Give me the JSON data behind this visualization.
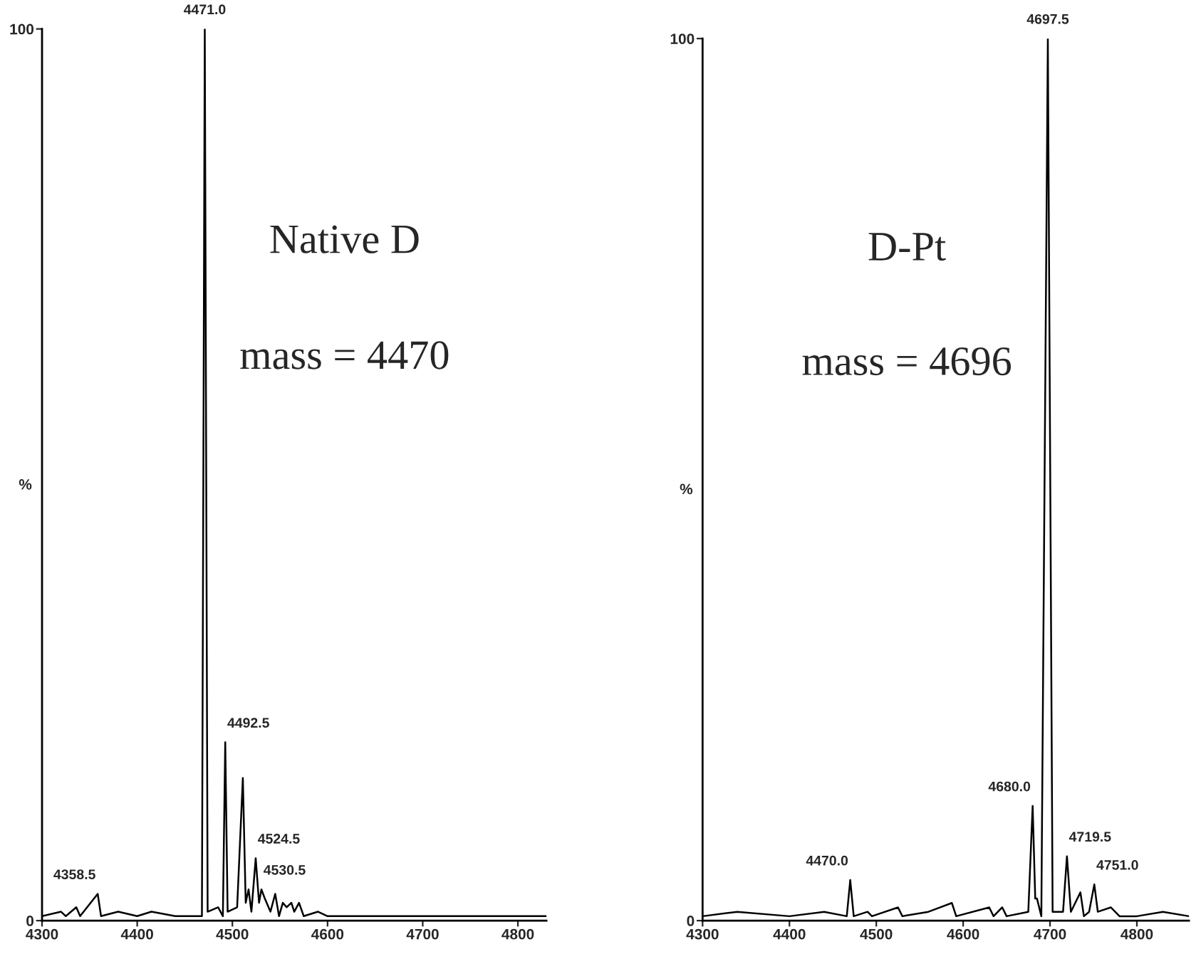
{
  "chart_data": [
    {
      "type": "line",
      "ylabel": "%",
      "xlim": [
        4300,
        4830
      ],
      "xticks": [
        4300,
        4400,
        4500,
        4600,
        4700,
        4800
      ],
      "ylim": [
        0,
        100
      ],
      "yticks": [
        0,
        100
      ],
      "grid": false,
      "legend": false,
      "marker": "none",
      "line_style": "solid",
      "annotations": [
        "Native D",
        "mass = 4470",
        {
          "text": "4471.0",
          "x": 4471,
          "y": 100
        },
        {
          "text": "4492.5",
          "x": 4492.5,
          "y": 20
        },
        {
          "text": "4524.5",
          "x": 4524.5,
          "y": 7
        },
        {
          "text": "4530.5",
          "x": 4530.5,
          "y": 3.5
        },
        {
          "text": "4358.5",
          "x": 4358.5,
          "y": 3
        }
      ],
      "series": [
        {
          "color": "#000000",
          "x": [
            4300,
            4320,
            4325,
            4336,
            4340,
            4358.5,
            4362,
            4380,
            4400,
            4415,
            4440,
            4468,
            4471,
            4474,
            4485,
            4490,
            4492.5,
            4495,
            4505,
            4511,
            4514,
            4517,
            4520,
            4524.5,
            4528,
            4530.5,
            4534,
            4540,
            4545,
            4549,
            4553,
            4557,
            4562,
            4565,
            4570,
            4575,
            4590,
            4600,
            4650,
            4700,
            4750,
            4800,
            4830
          ],
          "values": [
            0.5,
            1,
            0.5,
            1.5,
            0.5,
            3,
            0.5,
            1,
            0.5,
            1,
            0.5,
            0.5,
            100,
            1,
            1.5,
            0.5,
            20,
            1,
            1.5,
            16,
            2,
            3.5,
            1,
            7,
            2,
            3.5,
            2.5,
            1,
            3,
            0.5,
            2,
            1.5,
            2,
            1,
            2,
            0.5,
            1,
            0.5,
            0.5,
            0.5,
            0.5,
            0.5,
            0.5
          ]
        }
      ]
    },
    {
      "type": "line",
      "ylabel": "%",
      "xlim": [
        4300,
        4860
      ],
      "xticks": [
        4300,
        4400,
        4500,
        4600,
        4700,
        4800
      ],
      "ylim": [
        0,
        100
      ],
      "yticks": [
        0,
        100
      ],
      "grid": false,
      "legend": false,
      "marker": "none",
      "line_style": "solid",
      "annotations": [
        "D-Pt",
        "mass = 4696",
        {
          "text": "4697.5",
          "x": 4697.5,
          "y": 100
        },
        {
          "text": "4680.0",
          "x": 4680,
          "y": 13
        },
        {
          "text": "4719.5",
          "x": 4719.5,
          "y": 7.3
        },
        {
          "text": "4751.0",
          "x": 4751,
          "y": 4.1
        },
        {
          "text": "4470.0",
          "x": 4470,
          "y": 4.6
        }
      ],
      "series": [
        {
          "color": "#000000",
          "x": [
            4300,
            4340,
            4400,
            4440,
            4466,
            4470,
            4474,
            4490,
            4495,
            4525,
            4530,
            4560,
            4587,
            4592,
            4630,
            4635,
            4645,
            4650,
            4675,
            4680,
            4683,
            4685,
            4690,
            4697.5,
            4703,
            4715,
            4719.5,
            4724,
            4735,
            4739,
            4745,
            4751,
            4755,
            4770,
            4780,
            4800,
            4830,
            4860
          ],
          "values": [
            0.5,
            1,
            0.5,
            1,
            0.5,
            4.6,
            0.5,
            1,
            0.5,
            1.5,
            0.5,
            1,
            2,
            0.5,
            1.5,
            0.5,
            1.5,
            0.5,
            1,
            13,
            2.5,
            2.5,
            0.5,
            100,
            1,
            1,
            7.3,
            1,
            3.2,
            0.5,
            1,
            4.1,
            1,
            1.5,
            0.5,
            0.5,
            1,
            0.5
          ]
        }
      ]
    }
  ]
}
